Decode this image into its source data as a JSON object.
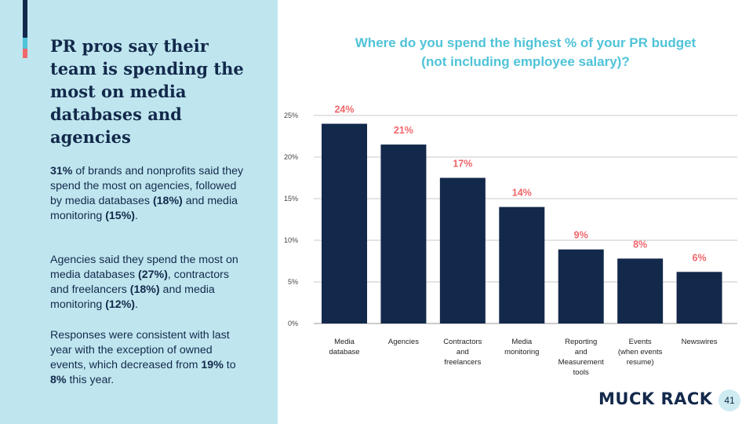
{
  "sidebar": {
    "headline": "PR pros say their team is spending the most on media databases and agencies",
    "paragraph1": {
      "s1": "31%",
      "t1": " of brands and nonprofits said they spend the most on agencies, followed by media databases ",
      "s2": "(18%)",
      "t2": " and media monitoring ",
      "s3": "(15%)",
      "t3": "."
    },
    "paragraph2": {
      "t1": "Agencies said they spend the most on media databases ",
      "s1": "(27%)",
      "t2": ", contractors and freelancers ",
      "s2": "(18%)",
      "t3": " and media monitoring ",
      "s3": "(12%)",
      "t4": "."
    },
    "paragraph3": {
      "t1": "Responses were consistent with last year with the exception of owned events, which decreased from ",
      "s1": "19%",
      "t2": " to ",
      "s2": "8%",
      "t3": " this year."
    }
  },
  "chart_title": "Where do you spend the highest % of your PR budget (not including employee salary)?",
  "chart_data": {
    "type": "bar",
    "title": "Where do you spend the highest % of your PR budget (not including employee salary)?",
    "categories": [
      [
        "Media",
        "database"
      ],
      [
        "Agencies"
      ],
      [
        "Contractors",
        "and",
        "freelancers"
      ],
      [
        "Media",
        "monitoring"
      ],
      [
        "Reporting",
        "and",
        "Measurement",
        "tools"
      ],
      [
        "Events",
        "(when events",
        "resume)"
      ],
      [
        "Newswires"
      ]
    ],
    "values": [
      24,
      21.5,
      17.5,
      14,
      8.9,
      7.8,
      6.2
    ],
    "value_labels": [
      "24%",
      "21%",
      "17%",
      "14%",
      "9%",
      "8%",
      "6%"
    ],
    "y_ticks": [
      "0%",
      "5%",
      "10%",
      "15%",
      "20%",
      "25%"
    ],
    "ylim": [
      0,
      25
    ],
    "grid": true,
    "legend": "none"
  },
  "colors": {
    "bar": "#13294b",
    "value_label": "#f0666a",
    "title": "#4fc3d8",
    "panel": "#bfe6ef",
    "grid": "#c9c9c9"
  },
  "footer": {
    "logo": "MUCK RACK",
    "page_number": "41"
  }
}
